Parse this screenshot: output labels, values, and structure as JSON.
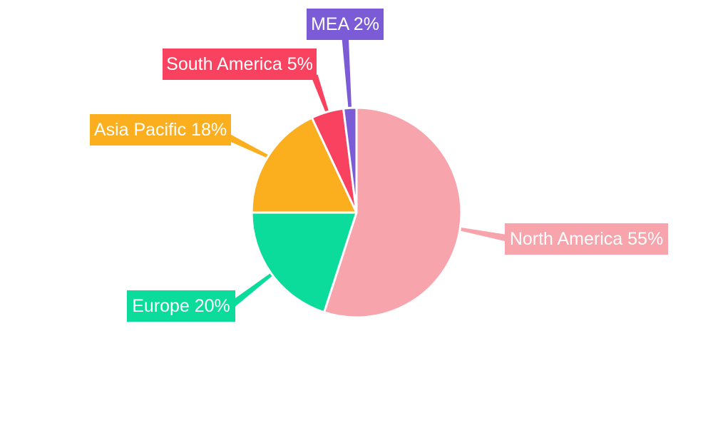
{
  "background_color": "#FFFFFF",
  "chart_data": {
    "type": "pie",
    "title": "",
    "legend": "none",
    "start_angle": "12 o'clock, clockwise",
    "label_style": "external callout boxes with slice-colored leader lines",
    "label_text_color": "#FFFFFF",
    "slice_border_color": "#FFFFFF",
    "slices": [
      {
        "name": "North America",
        "value": 55,
        "unit": "%",
        "color": "#F7A4AC",
        "label_text": "North America 55%"
      },
      {
        "name": "Europe",
        "value": 20,
        "unit": "%",
        "color": "#0BDB9B",
        "label_text": "Europe 20%"
      },
      {
        "name": "Asia Pacific",
        "value": 18,
        "unit": "%",
        "color": "#FBAE1E",
        "label_text": "Asia Pacific 18%"
      },
      {
        "name": "South America",
        "value": 5,
        "unit": "%",
        "color": "#F9425F",
        "label_text": "South America 5%"
      },
      {
        "name": "MEA",
        "value": 2,
        "unit": "%",
        "color": "#7B5CD6",
        "label_text": "MEA 2%"
      }
    ]
  }
}
